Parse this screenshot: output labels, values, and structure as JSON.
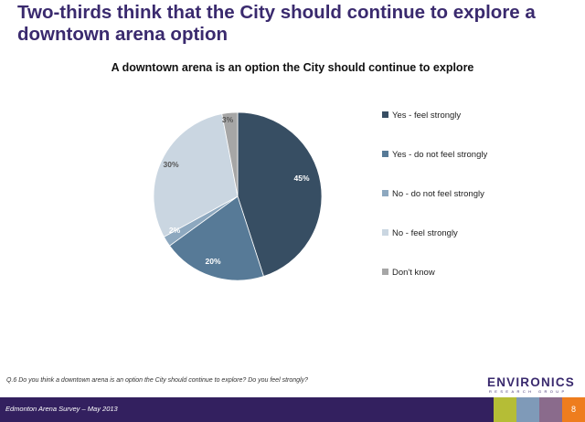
{
  "slide": {
    "title": "Two-thirds think that the City should continue to explore a downtown arena option",
    "question": "Q.6     Do you think a downtown arena is an option the City should continue to explore?  Do you feel strongly?",
    "footer": "Edmonton Arena Survey – May 2013",
    "page_number": "8",
    "logo_main": "ENVIRONICS",
    "logo_sub": "RESEARCH GROUP",
    "brand_colors": [
      "#33205f",
      "#b5bd36",
      "#7f9ab8",
      "#8a6b8c",
      "#6e8a9e",
      "#ee7d1e"
    ]
  },
  "chart_data": {
    "type": "pie",
    "title": "A downtown arena is an option the City should  continue to explore",
    "categories": [
      "Yes - feel strongly",
      "Yes - do not feel strongly",
      "No - do not feel strongly",
      "No - feel strongly",
      "Don't know"
    ],
    "values": [
      45,
      20,
      2,
      30,
      3
    ],
    "data_labels": [
      "45%",
      "20%",
      "2%",
      "30%",
      "3%"
    ],
    "colors": [
      "#374e63",
      "#577a97",
      "#8da8bf",
      "#cad6e1",
      "#a6a6a6"
    ],
    "legend_position": "right"
  }
}
